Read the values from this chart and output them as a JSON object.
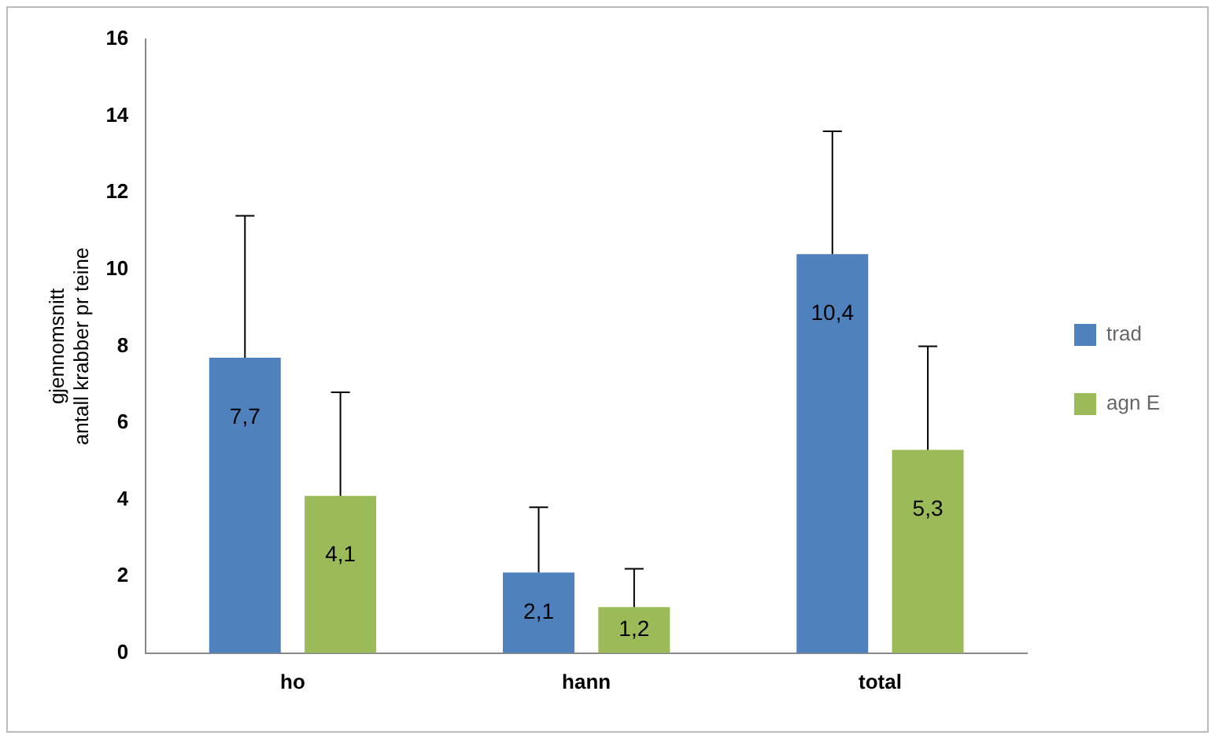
{
  "chart_data": {
    "type": "bar",
    "ylabel": "gjennomsnitt\nantall krabber pr teine",
    "categories": [
      "ho",
      "hann",
      "total"
    ],
    "series": [
      {
        "name": "trad",
        "color": "#4f81bd",
        "values": [
          7.7,
          2.1,
          10.4
        ],
        "value_labels": [
          "7,7",
          "2,1",
          "10,4"
        ],
        "errors": [
          [
            7.7,
            11.4
          ],
          [
            2.1,
            3.8
          ],
          [
            10.4,
            13.6
          ]
        ]
      },
      {
        "name": "agn E",
        "color": "#9bbb59",
        "values": [
          4.1,
          1.2,
          5.3
        ],
        "value_labels": [
          "4,1",
          "1,2",
          "5,3"
        ],
        "errors": [
          [
            4.1,
            6.8
          ],
          [
            1.2,
            2.2
          ],
          [
            5.3,
            8.0
          ]
        ]
      }
    ],
    "ylim": [
      0,
      16
    ],
    "yticks": [
      0,
      2,
      4,
      6,
      8,
      10,
      12,
      14,
      16
    ],
    "grid": false,
    "legend": "right"
  }
}
